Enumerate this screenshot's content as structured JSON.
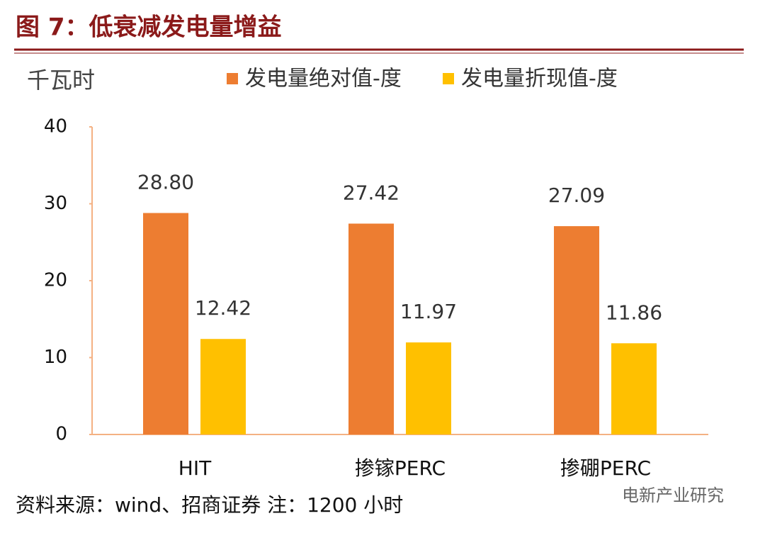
{
  "chart_data": {
    "type": "bar",
    "title": "图 7：低衰减发电量增益",
    "y_label": "千瓦时",
    "categories": [
      "HIT",
      "掺镓PERC",
      "掺硼PERC"
    ],
    "series": [
      {
        "name": "发电量绝对值-度",
        "color": "#ed7d31",
        "values": [
          28.8,
          27.42,
          27.09
        ],
        "value_labels": [
          "28.80",
          "27.42",
          "27.09"
        ]
      },
      {
        "name": "发电量折现值-度",
        "color": "#ffc000",
        "values": [
          12.42,
          11.97,
          11.86
        ],
        "value_labels": [
          "12.42",
          "11.97",
          "11.86"
        ]
      }
    ],
    "ylim": [
      0,
      40
    ],
    "yticks": [
      0,
      10,
      20,
      30,
      40
    ],
    "grid": false,
    "legend": "top",
    "source": "资料来源：wind、招商证券  注：1200 小时",
    "watermark": "电新产业研究"
  }
}
